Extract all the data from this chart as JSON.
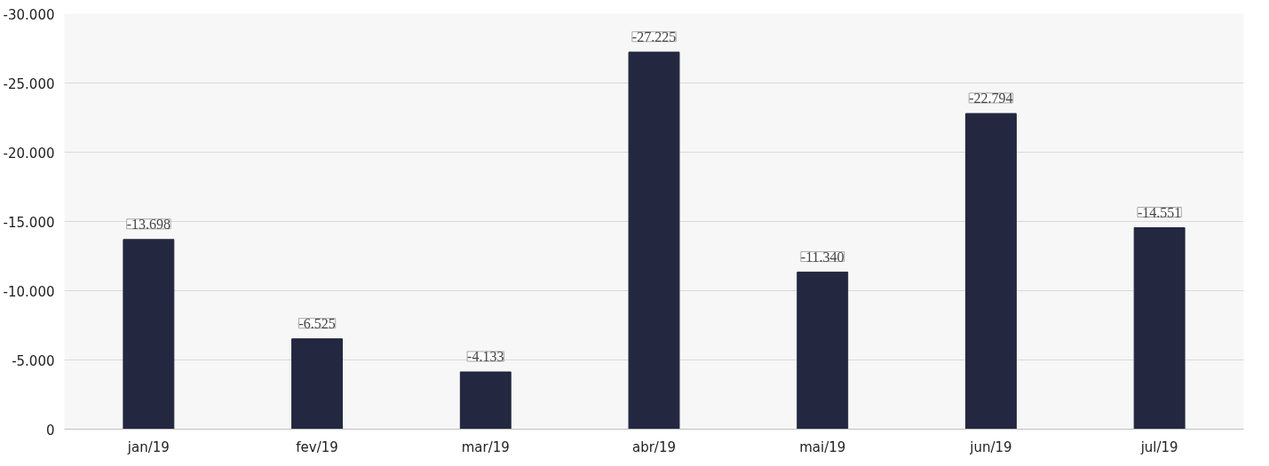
{
  "chart_data": {
    "type": "bar",
    "categories": [
      "jan/19",
      "fev/19",
      "mar/19",
      "abr/19",
      "mai/19",
      "jun/19",
      "jul/19"
    ],
    "values": [
      -13698,
      -6525,
      -4133,
      -27225,
      -11340,
      -22794,
      -14551
    ],
    "value_labels": [
      "-13.698",
      "-6.525",
      "-4.133",
      "-27.225",
      "-11.340",
      "-22.794",
      "-14.551"
    ],
    "color": "#232840",
    "ylim": [
      0,
      -30000
    ],
    "yticks": [
      {
        "value": 0,
        "label": "0"
      },
      {
        "value": -5000,
        "label": "-5.000"
      },
      {
        "value": -10000,
        "label": "-10.000"
      },
      {
        "value": -15000,
        "label": "-15.000"
      },
      {
        "value": -20000,
        "label": "-20.000"
      },
      {
        "value": -25000,
        "label": "-25.000"
      },
      {
        "value": -30000,
        "label": "-30.000"
      }
    ],
    "grid": "y"
  }
}
